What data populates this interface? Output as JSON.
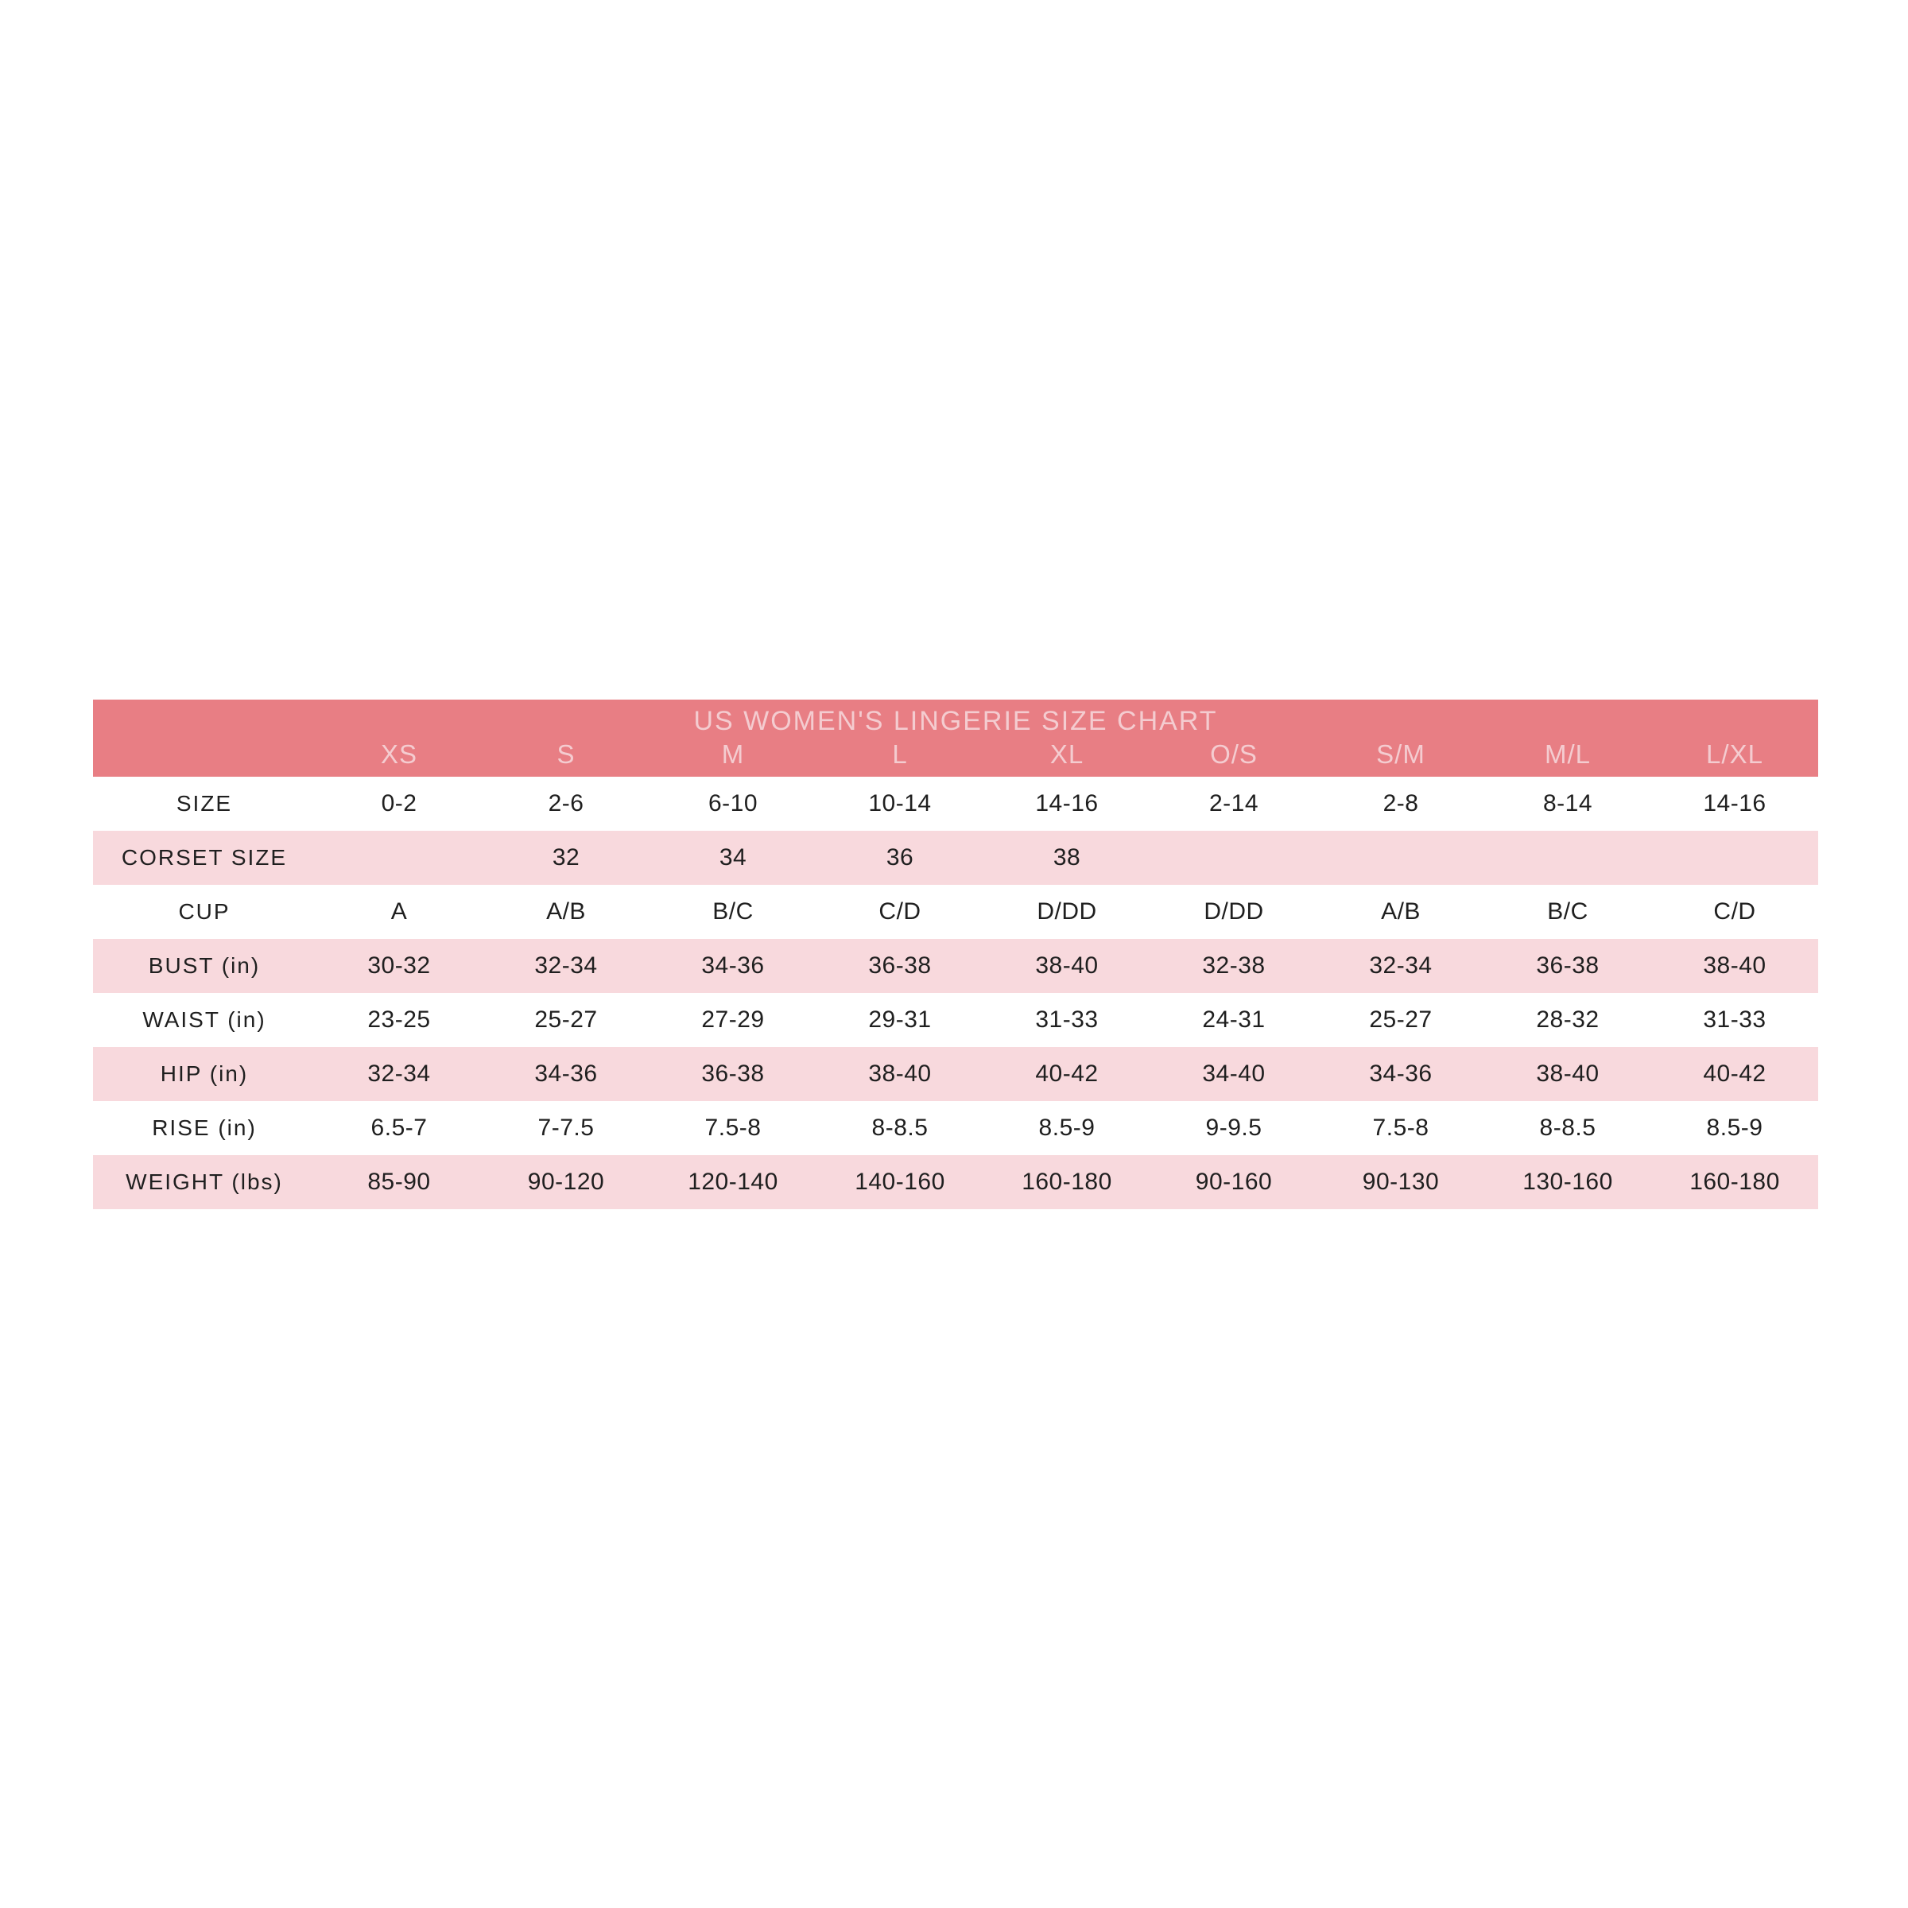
{
  "table": {
    "title": "US WOMEN'S LINGERIE SIZE CHART",
    "columns": [
      "XS",
      "S",
      "M",
      "L",
      "XL",
      "O/S",
      "S/M",
      "M/L",
      "L/XL"
    ],
    "rows": [
      {
        "label": "SIZE",
        "values": [
          "0-2",
          "2-6",
          "6-10",
          "10-14",
          "14-16",
          "2-14",
          "2-8",
          "8-14",
          "14-16"
        ]
      },
      {
        "label": "CORSET SIZE",
        "values": [
          "",
          "32",
          "34",
          "36",
          "38",
          "",
          "",
          "",
          ""
        ]
      },
      {
        "label": "CUP",
        "values": [
          "A",
          "A/B",
          "B/C",
          "C/D",
          "D/DD",
          "D/DD",
          "A/B",
          "B/C",
          "C/D"
        ]
      },
      {
        "label": "BUST (in)",
        "values": [
          "30-32",
          "32-34",
          "34-36",
          "36-38",
          "38-40",
          "32-38",
          "32-34",
          "36-38",
          "38-40"
        ]
      },
      {
        "label": "WAIST (in)",
        "values": [
          "23-25",
          "25-27",
          "27-29",
          "29-31",
          "31-33",
          "24-31",
          "25-27",
          "28-32",
          "31-33"
        ]
      },
      {
        "label": "HIP (in)",
        "values": [
          "32-34",
          "34-36",
          "36-38",
          "38-40",
          "40-42",
          "34-40",
          "34-36",
          "38-40",
          "40-42"
        ]
      },
      {
        "label": "RISE (in)",
        "values": [
          "6.5-7",
          "7-7.5",
          "7.5-8",
          "8-8.5",
          "8.5-9",
          "9-9.5",
          "7.5-8",
          "8-8.5",
          "8.5-9"
        ]
      },
      {
        "label": "WEIGHT (lbs)",
        "values": [
          "85-90",
          "90-120",
          "120-140",
          "140-160",
          "160-180",
          "90-160",
          "90-130",
          "130-160",
          "160-180"
        ]
      }
    ],
    "colors": {
      "header_bg": "#e87e84",
      "header_text": "#f4ccd0",
      "row_pink": "#f8d9dd",
      "row_white": "#ffffff",
      "body_text": "#1f1f1f",
      "page_bg": "#ffffff"
    }
  }
}
